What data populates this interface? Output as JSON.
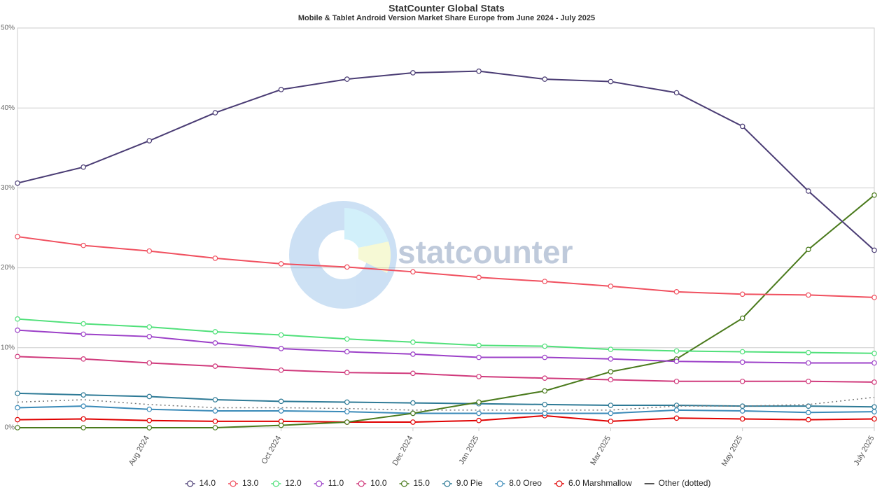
{
  "chart_data": {
    "type": "line",
    "title": "StatCounter Global Stats",
    "subtitle": "Mobile & Tablet Android Version Market Share Europe from June 2024 - July 2025",
    "watermark": "statcounter",
    "categories": [
      null,
      null,
      "Aug 2024",
      null,
      "Oct 2024",
      null,
      "Dec 2024",
      "Jan 2025",
      null,
      "Mar 2025",
      null,
      "May 2025",
      null,
      "July 2025"
    ],
    "ylim": [
      0,
      50
    ],
    "yticks": [
      {
        "value": 0,
        "label": "0%"
      },
      {
        "value": 10,
        "label": "10%"
      },
      {
        "value": 20,
        "label": "20%"
      },
      {
        "value": 30,
        "label": "30%"
      },
      {
        "value": 40,
        "label": "40%"
      },
      {
        "value": 50,
        "label": "50%"
      }
    ],
    "grid": true,
    "legend": "bottom",
    "series": [
      {
        "name": "14.0",
        "color": "#4a3c74",
        "values": [
          30.6,
          32.6,
          35.9,
          39.4,
          42.3,
          43.6,
          44.4,
          44.6,
          43.6,
          43.3,
          41.9,
          37.7,
          29.6,
          22.2
        ]
      },
      {
        "name": "13.0",
        "color": "#f0505f",
        "values": [
          23.9,
          22.8,
          22.1,
          21.2,
          20.5,
          20.1,
          19.5,
          18.8,
          18.3,
          17.7,
          17.0,
          16.7,
          16.6,
          16.3
        ]
      },
      {
        "name": "12.0",
        "color": "#50e07a",
        "values": [
          13.6,
          13.0,
          12.6,
          12.0,
          11.6,
          11.1,
          10.7,
          10.3,
          10.2,
          9.8,
          9.6,
          9.5,
          9.4,
          9.3
        ]
      },
      {
        "name": "11.0",
        "color": "#9c40c8",
        "values": [
          12.2,
          11.7,
          11.4,
          10.6,
          9.9,
          9.5,
          9.2,
          8.8,
          8.8,
          8.6,
          8.3,
          8.2,
          8.1,
          8.1
        ]
      },
      {
        "name": "10.0",
        "color": "#d03a7c",
        "values": [
          8.9,
          8.6,
          8.1,
          7.7,
          7.2,
          6.9,
          6.8,
          6.4,
          6.2,
          6.0,
          5.8,
          5.8,
          5.8,
          5.7
        ]
      },
      {
        "name": "15.0",
        "color": "#4a7a1c",
        "values": [
          0,
          0,
          0,
          0,
          0.3,
          0.7,
          1.8,
          3.2,
          4.6,
          7.0,
          8.6,
          13.7,
          22.3,
          29.1
        ]
      },
      {
        "name": "9.0 Pie",
        "color": "#2e7a96",
        "values": [
          4.3,
          4.1,
          3.9,
          3.5,
          3.3,
          3.2,
          3.1,
          3.0,
          2.9,
          2.8,
          2.8,
          2.7,
          2.7,
          2.6
        ]
      },
      {
        "name": "8.0 Oreo",
        "color": "#3a8ab8",
        "values": [
          2.5,
          2.7,
          2.3,
          2.1,
          2.1,
          2.0,
          1.8,
          1.8,
          1.8,
          1.8,
          2.2,
          2.1,
          1.9,
          2.0
        ]
      },
      {
        "name": "6.0 Marshmallow",
        "color": "#e00000",
        "values": [
          1.0,
          1.1,
          0.9,
          0.8,
          0.8,
          0.7,
          0.7,
          0.9,
          1.5,
          0.8,
          1.2,
          1.1,
          1.0,
          1.1
        ]
      },
      {
        "name": "Other (dotted)",
        "color": "#777777",
        "style": "dotted",
        "markers": false,
        "values": [
          3.2,
          3.5,
          2.9,
          2.5,
          2.5,
          2.4,
          2.2,
          2.2,
          2.2,
          2.2,
          2.7,
          2.7,
          2.9,
          3.8
        ]
      }
    ]
  }
}
